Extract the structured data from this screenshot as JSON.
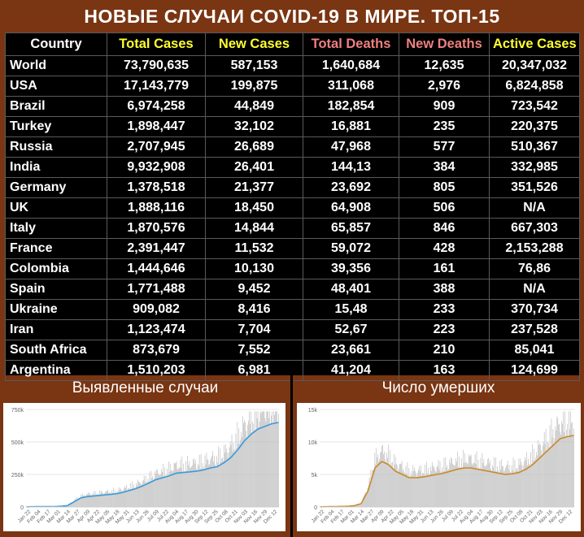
{
  "title": "НОВЫЕ СЛУЧАИ COVID-19 В МИРЕ. ТОП-15",
  "colors": {
    "background": "#7a3512",
    "header_country": "#ffffff",
    "header_cases": "#ffff33",
    "header_deaths": "#f08080",
    "table_bg": "#000000",
    "cases_line": "#3a9ad9",
    "deaths_line": "#c98a2a",
    "bars": "#bdbdbd"
  },
  "table": {
    "headers": [
      "Country",
      "Total Cases",
      "New Cases",
      "Total Deaths",
      "New Deaths",
      "Active Cases"
    ],
    "rows": [
      [
        "World",
        "73,790,635",
        "587,153",
        "1,640,684",
        "12,635",
        "20,347,032"
      ],
      [
        "USA",
        "17,143,779",
        "199,875",
        "311,068",
        "2,976",
        "6,824,858"
      ],
      [
        "Brazil",
        "6,974,258",
        "44,849",
        "182,854",
        "909",
        "723,542"
      ],
      [
        "Turkey",
        "1,898,447",
        "32,102",
        "16,881",
        "235",
        "220,375"
      ],
      [
        "Russia",
        "2,707,945",
        "26,689",
        "47,968",
        "577",
        "510,367"
      ],
      [
        "India",
        "9,932,908",
        "26,401",
        "144,13",
        "384",
        "332,985"
      ],
      [
        "Germany",
        "1,378,518",
        "21,377",
        "23,692",
        "805",
        "351,526"
      ],
      [
        "UK",
        "1,888,116",
        "18,450",
        "64,908",
        "506",
        "N/A"
      ],
      [
        "Italy",
        "1,870,576",
        "14,844",
        "65,857",
        "846",
        "667,303"
      ],
      [
        "France",
        "2,391,447",
        "11,532",
        "59,072",
        "428",
        "2,153,288"
      ],
      [
        "Colombia",
        "1,444,646",
        "10,130",
        "39,356",
        "161",
        "76,86"
      ],
      [
        "Spain",
        "1,771,488",
        "9,452",
        "48,401",
        "388",
        "N/A"
      ],
      [
        "Ukraine",
        "909,082",
        "8,416",
        "15,48",
        "233",
        "370,734"
      ],
      [
        "Iran",
        "1,123,474",
        "7,704",
        "52,67",
        "223",
        "237,528"
      ],
      [
        "South Africa",
        "873,679",
        "7,552",
        "23,661",
        "210",
        "85,041"
      ],
      [
        "Argentina",
        "1,510,203",
        "6,981",
        "41,204",
        "163",
        "124,699"
      ]
    ]
  },
  "chart_data": [
    {
      "type": "bar",
      "title": "Выявленные случаи",
      "xlabel": "",
      "ylabel": "",
      "ylim": [
        0,
        750000
      ],
      "yticks": [
        "0",
        "250k",
        "500k",
        "750k"
      ],
      "ytick_values": [
        0,
        250000,
        500000,
        750000
      ],
      "xticks": [
        "Jan 22",
        "Feb 04",
        "Feb 17",
        "Mar 01",
        "Mar 14",
        "Mar 27",
        "Apr 09",
        "Apr 22",
        "May 05",
        "May 18",
        "May 31",
        "Jun 13",
        "Jun 26",
        "Jul 09",
        "Jul 22",
        "Aug 04",
        "Aug 17",
        "Aug 30",
        "Sep 12",
        "Sep 25",
        "Oct 08",
        "Oct 21",
        "Nov 03",
        "Nov 16",
        "Nov 29",
        "Dec 12"
      ],
      "grid": true,
      "series": [
        {
          "values": [
            1000,
            2000,
            3000,
            2500,
            3000,
            5000,
            10000,
            40000,
            70000,
            80000,
            85000,
            90000,
            95000,
            100000,
            110000,
            125000,
            140000,
            160000,
            185000,
            210000,
            225000,
            240000,
            260000,
            265000,
            270000,
            275000,
            285000,
            300000,
            310000,
            340000,
            380000,
            440000,
            510000,
            560000,
            600000,
            620000,
            640000,
            650000
          ]
        }
      ]
    },
    {
      "type": "bar",
      "title": "Число умерших",
      "xlabel": "",
      "ylabel": "",
      "ylim": [
        0,
        15000
      ],
      "yticks": [
        "0",
        "5k",
        "10k",
        "15k"
      ],
      "ytick_values": [
        0,
        5000,
        10000,
        15000
      ],
      "xticks": [
        "Jan 22",
        "Feb 04",
        "Feb 17",
        "Mar 01",
        "Mar 14",
        "Mar 27",
        "Apr 09",
        "Apr 22",
        "May 05",
        "May 18",
        "May 31",
        "Jun 13",
        "Jun 26",
        "Jul 09",
        "Jul 22",
        "Aug 04",
        "Aug 17",
        "Aug 30",
        "Sep 12",
        "Sep 25",
        "Oct 08",
        "Oct 21",
        "Nov 03",
        "Nov 16",
        "Nov 29",
        "Dec 12"
      ],
      "grid": true,
      "series": [
        {
          "values": [
            20,
            40,
            60,
            80,
            100,
            200,
            500,
            2500,
            6000,
            7000,
            6500,
            5500,
            5000,
            4500,
            4500,
            4600,
            4800,
            5000,
            5200,
            5500,
            5800,
            6000,
            6000,
            5800,
            5600,
            5400,
            5200,
            5000,
            5100,
            5300,
            5800,
            6500,
            7500,
            8500,
            9500,
            10500,
            10800,
            11000
          ]
        }
      ]
    }
  ]
}
